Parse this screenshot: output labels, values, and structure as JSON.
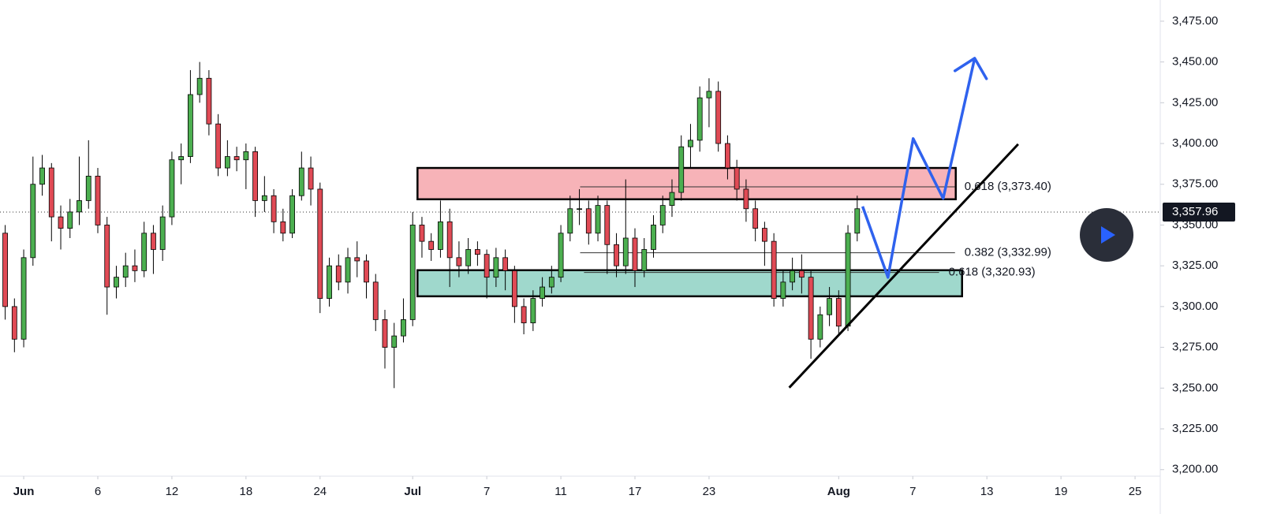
{
  "chart_data": {
    "type": "candlestick",
    "x": [
      -1,
      -0.5,
      0,
      0.5,
      1,
      1.5,
      2,
      2.5,
      3,
      3.5,
      4,
      4.5,
      5,
      5.5,
      6,
      6.5,
      7,
      7.5,
      8,
      8.5,
      9,
      9.5,
      10,
      10.5,
      11,
      11.5,
      12,
      12.5,
      13,
      13.5,
      14,
      14.5,
      15,
      15.5,
      16,
      16.5,
      17,
      17.5,
      18,
      18.5,
      19,
      19.5,
      20,
      20.5,
      21,
      21.5,
      22,
      22.5,
      23,
      23.5,
      24,
      24.5,
      25,
      25.5,
      26,
      26.5,
      27,
      27.5,
      28,
      28.5,
      29,
      29.5,
      30,
      30.5,
      31,
      31.5,
      32,
      32.5,
      33,
      33.5,
      34,
      34.5,
      35,
      35.5,
      36,
      36.5,
      37,
      37.5,
      38,
      38.5,
      39,
      39.5,
      40,
      40.5,
      41,
      41.5,
      42,
      42.5,
      43,
      43.5,
      44,
      44.5,
      45
    ],
    "open": [
      3345,
      3300,
      3280,
      3330,
      3375,
      3385,
      3355,
      3348,
      3358,
      3365,
      3380,
      3350,
      3312,
      3318,
      3325,
      3322,
      3345,
      3335,
      3355,
      3390,
      3392,
      3430,
      3440,
      3412,
      3385,
      3392,
      3390,
      3395,
      3365,
      3368,
      3352,
      3345,
      3368,
      3385,
      3372,
      3305,
      3325,
      3315,
      3330,
      3328,
      3315,
      3292,
      3275,
      3282,
      3292,
      3350,
      3340,
      3335,
      3352,
      3330,
      3325,
      3335,
      3332,
      3318,
      3330,
      3322,
      3300,
      3290,
      3305,
      3312,
      3318,
      3345,
      3360,
      3360,
      3345,
      3362,
      3338,
      3325,
      3342,
      3322,
      3335,
      3350,
      3362,
      3370,
      3398,
      3402,
      3428,
      3432,
      3400,
      3385,
      3372,
      3360,
      3348,
      3340,
      3305,
      3315,
      3322,
      3318,
      3280,
      3295,
      3305,
      3288,
      3345
    ],
    "high": [
      3350,
      3305,
      3335,
      3392,
      3393,
      3388,
      3362,
      3366,
      3392,
      3402,
      3385,
      3355,
      3325,
      3333,
      3335,
      3352,
      3350,
      3362,
      3395,
      3400,
      3445,
      3450,
      3445,
      3418,
      3402,
      3398,
      3400,
      3398,
      3380,
      3372,
      3360,
      3372,
      3395,
      3392,
      3376,
      3330,
      3332,
      3336,
      3340,
      3332,
      3320,
      3298,
      3290,
      3305,
      3358,
      3355,
      3345,
      3365,
      3360,
      3340,
      3342,
      3340,
      3335,
      3336,
      3335,
      3325,
      3305,
      3310,
      3318,
      3325,
      3350,
      3368,
      3372,
      3365,
      3368,
      3365,
      3345,
      3378,
      3348,
      3342,
      3356,
      3368,
      3378,
      3405,
      3412,
      3435,
      3440,
      3438,
      3405,
      3390,
      3378,
      3365,
      3352,
      3345,
      3322,
      3330,
      3332,
      3322,
      3300,
      3312,
      3310,
      3350,
      3368
    ],
    "low": [
      3292,
      3272,
      3275,
      3325,
      3368,
      3340,
      3335,
      3342,
      3350,
      3360,
      3345,
      3295,
      3305,
      3312,
      3315,
      3318,
      3320,
      3328,
      3350,
      3375,
      3388,
      3425,
      3405,
      3380,
      3380,
      3383,
      3372,
      3355,
      3358,
      3345,
      3340,
      3342,
      3365,
      3362,
      3296,
      3300,
      3310,
      3308,
      3318,
      3305,
      3285,
      3262,
      3250,
      3278,
      3288,
      3330,
      3328,
      3330,
      3312,
      3318,
      3320,
      3325,
      3305,
      3312,
      3310,
      3290,
      3283,
      3285,
      3300,
      3308,
      3315,
      3340,
      3350,
      3338,
      3340,
      3320,
      3318,
      3320,
      3312,
      3318,
      3330,
      3345,
      3355,
      3365,
      3385,
      3395,
      3410,
      3395,
      3378,
      3365,
      3352,
      3340,
      3325,
      3300,
      3300,
      3310,
      3308,
      3268,
      3275,
      3288,
      3282,
      3285,
      3340
    ],
    "close": [
      3300,
      3280,
      3330,
      3375,
      3385,
      3355,
      3348,
      3358,
      3365,
      3380,
      3350,
      3312,
      3318,
      3325,
      3322,
      3345,
      3335,
      3355,
      3390,
      3392,
      3430,
      3440,
      3412,
      3385,
      3392,
      3390,
      3395,
      3365,
      3368,
      3352,
      3345,
      3368,
      3385,
      3372,
      3305,
      3325,
      3315,
      3330,
      3328,
      3315,
      3292,
      3275,
      3282,
      3292,
      3350,
      3340,
      3335,
      3352,
      3330,
      3325,
      3335,
      3332,
      3318,
      3330,
      3322,
      3300,
      3290,
      3305,
      3312,
      3318,
      3345,
      3360,
      3360,
      3345,
      3362,
      3338,
      3325,
      3342,
      3322,
      3335,
      3350,
      3362,
      3370,
      3398,
      3402,
      3428,
      3432,
      3400,
      3385,
      3372,
      3360,
      3348,
      3340,
      3305,
      3315,
      3322,
      3318,
      3280,
      3295,
      3305,
      3288,
      3345,
      3360
    ],
    "up_color": "#4caf50",
    "down_color": "#e04a55",
    "xlim": [
      -1.28,
      61.36
    ],
    "xticks": [
      {
        "value": 0,
        "label": "Jun"
      },
      {
        "value": 4,
        "label": "6"
      },
      {
        "value": 8,
        "label": "12"
      },
      {
        "value": 12,
        "label": "18"
      },
      {
        "value": 16,
        "label": "24"
      },
      {
        "value": 21,
        "label": "Jul"
      },
      {
        "value": 25,
        "label": "7"
      },
      {
        "value": 29,
        "label": "11"
      },
      {
        "value": 33,
        "label": "17"
      },
      {
        "value": 37,
        "label": "23"
      },
      {
        "value": 44,
        "label": "Aug"
      },
      {
        "value": 48,
        "label": "7"
      },
      {
        "value": 52,
        "label": "13"
      },
      {
        "value": 56,
        "label": "19"
      },
      {
        "value": 60,
        "label": "25"
      }
    ],
    "ylim": [
      3196,
      3488
    ],
    "yticks": [
      {
        "value": 3200,
        "label": "3,200.00"
      },
      {
        "value": 3225,
        "label": "3,225.00"
      },
      {
        "value": 3250,
        "label": "3,250.00"
      },
      {
        "value": 3275,
        "label": "3,275.00"
      },
      {
        "value": 3300,
        "label": "3,300.00"
      },
      {
        "value": 3325,
        "label": "3,325.00"
      },
      {
        "value": 3350,
        "label": "3,350.00"
      },
      {
        "value": 3375,
        "label": "3,375.00"
      },
      {
        "value": 3400,
        "label": "3,400.00"
      },
      {
        "value": 3425,
        "label": "3,425.00"
      },
      {
        "value": 3450,
        "label": "3,450.00"
      },
      {
        "value": 3475,
        "label": "3,475.00"
      }
    ],
    "last_price": {
      "value": 3357.96,
      "label": "3,357.96"
    },
    "zones": [
      {
        "x": [
          21.26,
          50.32
        ],
        "y": [
          3365.8,
          3385
        ],
        "color": "#f7b3b8"
      },
      {
        "x": [
          21.26,
          50.66
        ],
        "y": [
          3306.3,
          3322.3
        ],
        "color": "#9fd8cc"
      }
    ],
    "fib_levels": [
      {
        "value": 3373.4,
        "label": "0.618 (3,373.40)",
        "x": [
          30.04,
          50.28
        ]
      },
      {
        "value": 3332.99,
        "label": "0.382 (3,332.99)",
        "x": [
          30.04,
          50.28
        ]
      },
      {
        "value": 3320.93,
        "label": "0.618 (3,320.93)",
        "x": [
          30.25,
          49.42
        ]
      }
    ],
    "trend_line": {
      "x": [
        41.33,
        53.69
      ],
      "y": [
        3250.3,
        3399.6
      ],
      "color": "#000000"
    },
    "projection": {
      "x": [
        45.29,
        46.66,
        48.02,
        49.64,
        51.34
      ],
      "y": [
        3361.4,
        3317.9,
        3403.0,
        3366.3,
        3452.3
      ],
      "color": "#2f62ee"
    }
  }
}
